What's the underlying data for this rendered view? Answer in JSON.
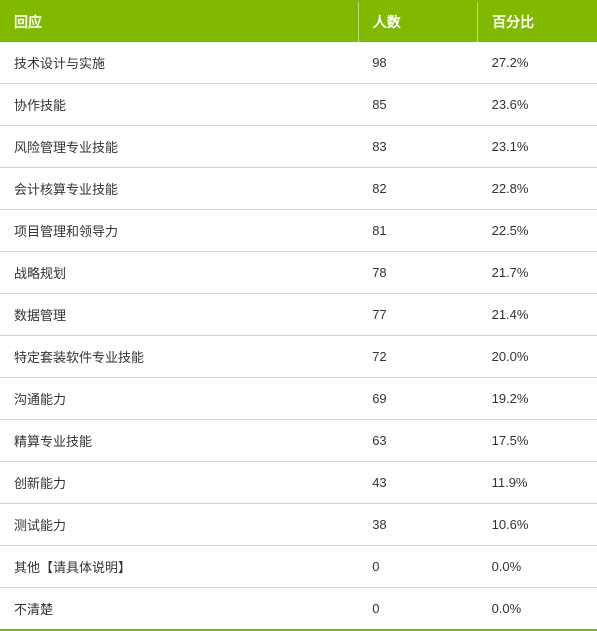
{
  "table": {
    "type": "table",
    "header_bg_color": "#7fba00",
    "header_text_color": "#ffffff",
    "border_color": "#d0d0d0",
    "outer_border_color": "#7fba00",
    "cell_text_color": "#333333",
    "font_size_header": 14,
    "font_size_body": 13,
    "columns": [
      {
        "label": "回应",
        "width": "60%"
      },
      {
        "label": "人数",
        "width": "20%"
      },
      {
        "label": "百分比",
        "width": "20%"
      }
    ],
    "rows": [
      {
        "response": "技术设计与实施",
        "count": "98",
        "percent": "27.2%"
      },
      {
        "response": "协作技能",
        "count": "85",
        "percent": "23.6%"
      },
      {
        "response": "风险管理专业技能",
        "count": "83",
        "percent": "23.1%"
      },
      {
        "response": "会计核算专业技能",
        "count": "82",
        "percent": "22.8%"
      },
      {
        "response": "项目管理和领导力",
        "count": "81",
        "percent": "22.5%"
      },
      {
        "response": "战略规划",
        "count": "78",
        "percent": "21.7%"
      },
      {
        "response": "数据管理",
        "count": "77",
        "percent": "21.4%"
      },
      {
        "response": "特定套装软件专业技能",
        "count": "72",
        "percent": "20.0%"
      },
      {
        "response": "沟通能力",
        "count": "69",
        "percent": "19.2%"
      },
      {
        "response": "精算专业技能",
        "count": "63",
        "percent": "17.5%"
      },
      {
        "response": "创新能力",
        "count": "43",
        "percent": "11.9%"
      },
      {
        "response": "测试能力",
        "count": "38",
        "percent": "10.6%"
      },
      {
        "response": "其他【请具体说明】",
        "count": "0",
        "percent": "0.0%"
      },
      {
        "response": "不清楚",
        "count": "0",
        "percent": "0.0%"
      }
    ]
  }
}
